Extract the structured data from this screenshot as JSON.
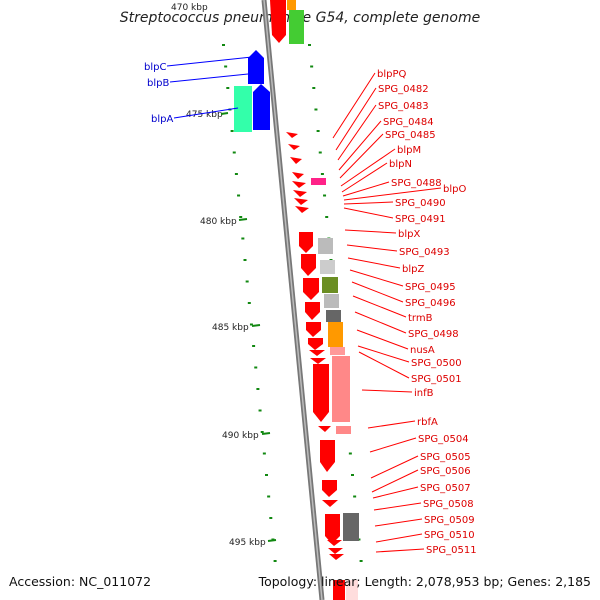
{
  "title": "Streptococcus pneumoniae G54, complete genome",
  "footer": {
    "accession": "Accession: NC_011072",
    "stats": "Topology: linear; Length: 2,078,953 bp; Genes: 2,185"
  },
  "ruler": {
    "labels": [
      "470 kbp",
      "475 kbp",
      "480 kbp",
      "485 kbp",
      "490 kbp",
      "495 kbp"
    ]
  },
  "genes_left": [
    "blpC",
    "blpB",
    "blpA"
  ],
  "genes_right": [
    "blpPQ",
    "SPG_0482",
    "SPG_0483",
    "SPG_0484",
    "SPG_0485",
    "blpM",
    "blpN",
    "SPG_0488",
    "blpO",
    "SPG_0490",
    "SPG_0491",
    "blpX",
    "SPG_0493",
    "blpZ",
    "SPG_0495",
    "SPG_0496",
    "trmB",
    "SPG_0498",
    "nusA",
    "SPG_0500",
    "SPG_0501",
    "infB",
    "rbfA",
    "SPG_0504",
    "SPG_0505",
    "SPG_0506",
    "SPG_0507",
    "SPG_0508",
    "SPG_0509",
    "SPG_0510",
    "SPG_0511"
  ],
  "colors": {
    "red": "#ff0000",
    "blue": "#0000ff",
    "teal": "#33ffaa",
    "green": "#44cc33",
    "olive": "#6b8e23",
    "orange": "#ff9900",
    "grey": "#aaaaaa",
    "darkgrey": "#666666",
    "magenta": "#ff2288",
    "tick": "#118811",
    "backbone": "#888888"
  }
}
